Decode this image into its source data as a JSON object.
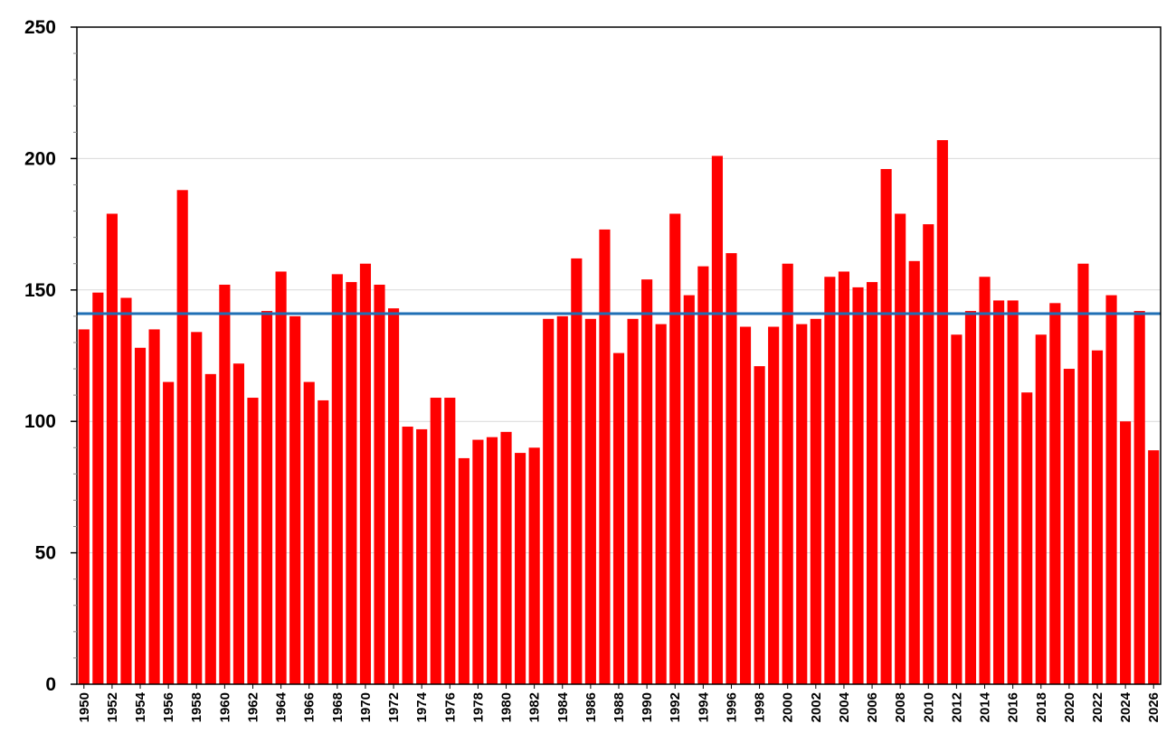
{
  "chart_data": {
    "type": "bar",
    "title": "",
    "xlabel": "",
    "ylabel": "",
    "ylim": [
      0,
      250
    ],
    "yticks": [
      0,
      50,
      100,
      150,
      200,
      250
    ],
    "grid": true,
    "bar_color": "#ff0000",
    "reference_line": {
      "value": 141,
      "color": "#1f6fb5"
    },
    "x": [
      1950,
      1951,
      1952,
      1953,
      1954,
      1955,
      1956,
      1957,
      1958,
      1959,
      1960,
      1961,
      1962,
      1963,
      1964,
      1965,
      1966,
      1967,
      1968,
      1969,
      1970,
      1971,
      1972,
      1973,
      1974,
      1975,
      1976,
      1977,
      1978,
      1979,
      1980,
      1981,
      1982,
      1983,
      1984,
      1985,
      1986,
      1987,
      1988,
      1989,
      1990,
      1991,
      1992,
      1993,
      1994,
      1995,
      1996,
      1997,
      1998,
      1999,
      2000,
      2001,
      2002,
      2003,
      2004,
      2005,
      2006,
      2007,
      2008,
      2009,
      2010,
      2011,
      2012,
      2013,
      2014,
      2015,
      2016,
      2017,
      2018,
      2019,
      2020,
      2021,
      2022,
      2023,
      2024,
      2025,
      2026
    ],
    "values": [
      135,
      149,
      179,
      147,
      128,
      135,
      115,
      188,
      134,
      118,
      152,
      122,
      109,
      142,
      157,
      140,
      115,
      108,
      156,
      153,
      160,
      152,
      143,
      98,
      97,
      109,
      109,
      86,
      93,
      94,
      96,
      88,
      90,
      139,
      140,
      162,
      139,
      173,
      126,
      139,
      154,
      137,
      179,
      148,
      159,
      201,
      164,
      136,
      121,
      136,
      160,
      137,
      139,
      155,
      157,
      151,
      153,
      196,
      179,
      161,
      175,
      207,
      133,
      142,
      155,
      146,
      146,
      111,
      133,
      145,
      120,
      160,
      127,
      148,
      100,
      142,
      89
    ],
    "xtick_labels": [
      "1950",
      "1952",
      "1954",
      "1956",
      "1958",
      "1960",
      "1962",
      "1964",
      "1966",
      "1968",
      "1970",
      "1972",
      "1974",
      "1976",
      "1978",
      "1980",
      "1982",
      "1984",
      "1986",
      "1988",
      "1990",
      "1992",
      "1994",
      "1996",
      "1998",
      "2000",
      "2002",
      "2004",
      "2006",
      "2008",
      "2010",
      "2012",
      "2014",
      "2016",
      "2018",
      "2020",
      "2022",
      "2024",
      "2026"
    ]
  }
}
